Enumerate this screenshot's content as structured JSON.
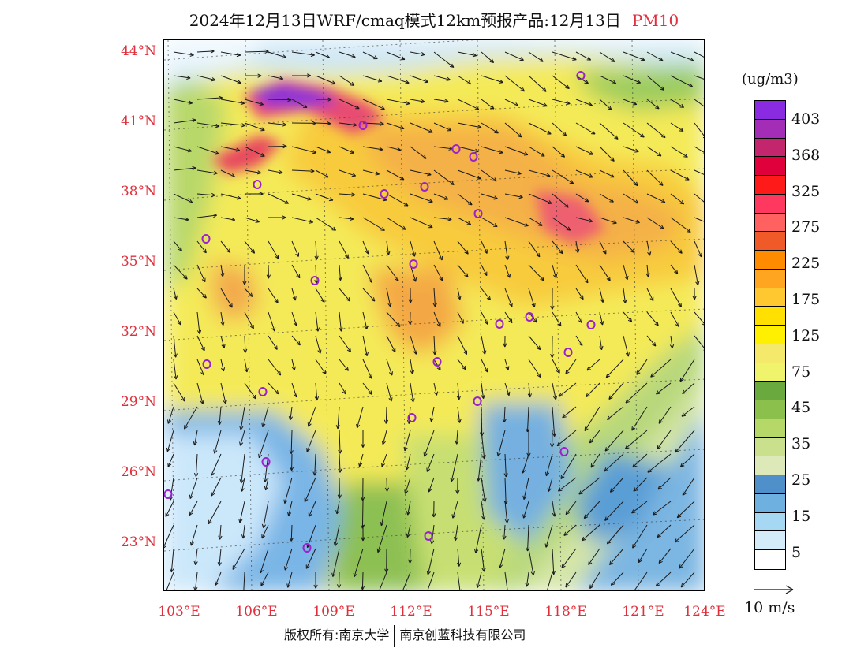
{
  "header": {
    "title": "2024年12月13日WRF/cmaq模式12km预报产品:12月13日",
    "product": "PM10"
  },
  "map": {
    "lat_labels": [
      "44°N",
      "41°N",
      "38°N",
      "35°N",
      "32°N",
      "29°N",
      "26°N",
      "23°N"
    ],
    "lon_labels": [
      "103°E",
      "106°E",
      "109°E",
      "112°E",
      "115°E",
      "118°E",
      "121°E",
      "124°E"
    ],
    "colors": {
      "very_low": "#d6eefc",
      "low": "#5ca4dc",
      "mid_low": "#c9e08a",
      "mid": "#eef06a",
      "high": "#ffd400",
      "very_high": "#f7a83a",
      "extreme": "#e84a70",
      "max": "#8f34d8",
      "arrow": "#1a1a1a",
      "city_marker": "#9a22cc"
    }
  },
  "legend": {
    "units": "(ug/m3)",
    "labels": [
      "403",
      "368",
      "325",
      "275",
      "225",
      "175",
      "125",
      "75",
      "45",
      "35",
      "25",
      "15",
      "5"
    ],
    "colors": [
      "#8a2be2",
      "#a42db8",
      "#c3266c",
      "#e0003c",
      "#ff1a1a",
      "#ff3860",
      "#ff6060",
      "#f05a28",
      "#ff8c00",
      "#ffa51f",
      "#ffc830",
      "#ffe000",
      "#ffef00",
      "#f4e96a",
      "#f0f36c",
      "#6aa93e",
      "#8cc04c",
      "#b6d868",
      "#cbe08c",
      "#dde9b8",
      "#4f8fca",
      "#6eb0e0",
      "#a6d8f4",
      "#d4ecfa",
      "#ffffff"
    ],
    "wind_reference": "10 m/s"
  },
  "footer": {
    "copyright_prefix": "版权所有:南京大学",
    "company": "南京创蓝科技有限公司"
  }
}
